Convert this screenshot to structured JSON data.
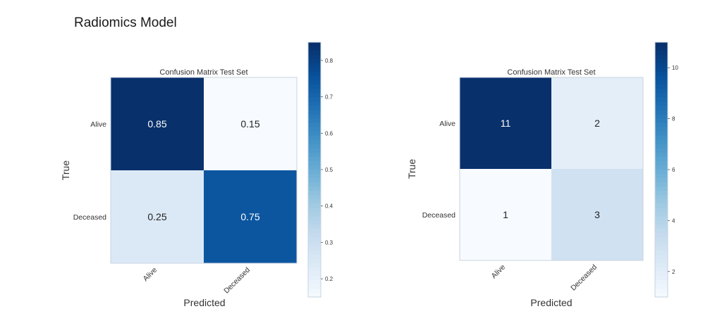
{
  "page_title": "Radiomics Model",
  "chart_data": [
    {
      "type": "heatmap",
      "title": "Confusion Matrix Test Set",
      "xlabel": "Predicted",
      "ylabel": "True",
      "row_labels": [
        "Alive",
        "Deceased"
      ],
      "col_labels": [
        "Alive",
        "Deceased"
      ],
      "values": [
        [
          0.85,
          0.15
        ],
        [
          0.25,
          0.75
        ]
      ],
      "cell_labels": [
        [
          "0.85",
          "0.15"
        ],
        [
          "0.25",
          "0.75"
        ]
      ],
      "colorbar": {
        "range": [
          0.15,
          0.85
        ],
        "ticks": [
          0.2,
          0.3,
          0.4,
          0.5,
          0.6,
          0.7,
          0.8
        ],
        "tick_labels": [
          "0.2",
          "0.3",
          "0.4",
          "0.5",
          "0.6",
          "0.7",
          "0.8"
        ]
      },
      "colormap": "Blues"
    },
    {
      "type": "heatmap",
      "title": "Confusion Matrix Test Set",
      "xlabel": "Predicted",
      "ylabel": "True",
      "row_labels": [
        "Alive",
        "Deceased"
      ],
      "col_labels": [
        "Alive",
        "Deceased"
      ],
      "values": [
        [
          11,
          2
        ],
        [
          1,
          3
        ]
      ],
      "cell_labels": [
        [
          "11",
          "2"
        ],
        [
          "1",
          "3"
        ]
      ],
      "colorbar": {
        "range": [
          1,
          11
        ],
        "ticks": [
          2,
          4,
          6,
          8,
          10
        ],
        "tick_labels": [
          "2",
          "4",
          "6",
          "8",
          "10"
        ]
      },
      "colormap": "Blues"
    }
  ]
}
